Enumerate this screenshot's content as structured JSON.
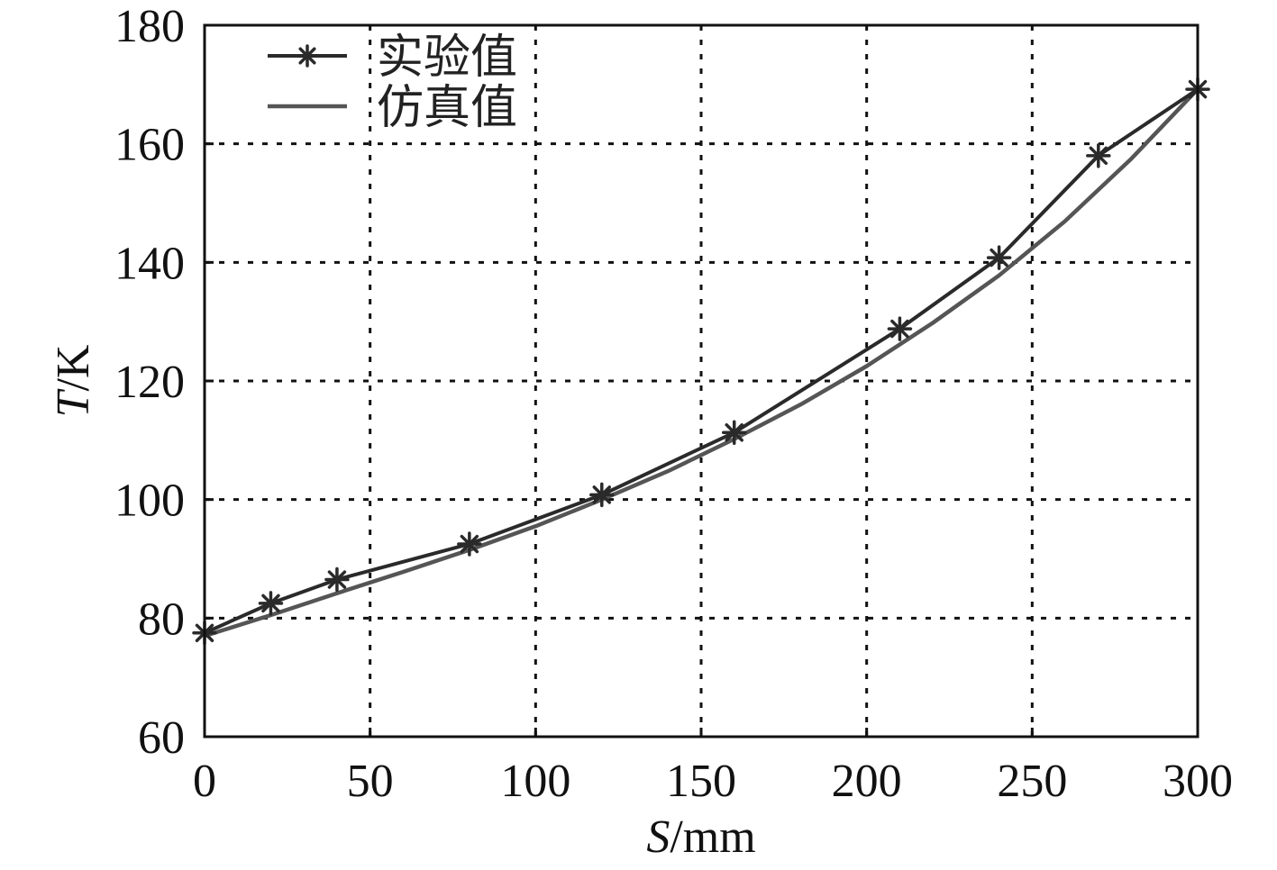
{
  "chart_data": {
    "type": "line",
    "xlabel_italic": "S",
    "xlabel_unit": "/mm",
    "ylabel_italic": "T",
    "ylabel_unit": "/K",
    "xlim": [
      0,
      300
    ],
    "ylim": [
      60,
      180
    ],
    "x_ticks": [
      "0",
      "50",
      "100",
      "150",
      "200",
      "250",
      "300"
    ],
    "y_ticks": [
      "60",
      "80",
      "100",
      "120",
      "140",
      "160",
      "180"
    ],
    "grid": true,
    "legend_position": "top-left",
    "series": [
      {
        "name": "实验值",
        "color": "#2a2a2a",
        "marker": "asterisk",
        "x": [
          0,
          20,
          40,
          80,
          120,
          160,
          210,
          240,
          270,
          300
        ],
        "y": [
          77.5,
          82.5,
          86.5,
          92.5,
          100.8,
          111.3,
          128.8,
          140.8,
          158.0,
          169.2
        ]
      },
      {
        "name": "仿真值",
        "color": "#555555",
        "marker": "none",
        "x": [
          0,
          20,
          40,
          60,
          80,
          100,
          120,
          140,
          160,
          180,
          200,
          220,
          240,
          260,
          280,
          300
        ],
        "y": [
          77.0,
          80.5,
          84.2,
          87.8,
          91.5,
          95.5,
          100.0,
          104.8,
          110.2,
          116.0,
          122.5,
          129.8,
          137.8,
          147.0,
          157.5,
          169.2
        ]
      }
    ]
  }
}
